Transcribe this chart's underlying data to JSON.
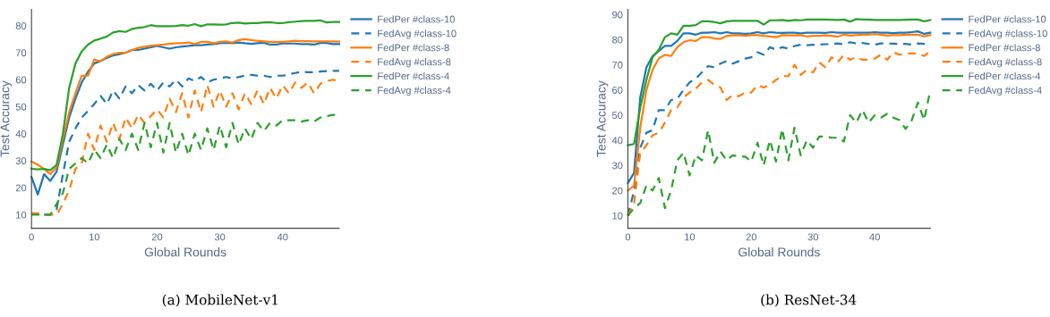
{
  "chart_data": [
    {
      "type": "line",
      "xlabel": "Global Rounds",
      "ylabel": "Test Accuracy",
      "annotations": [
        "(a) MobileNet-v1"
      ],
      "xlim": [
        0,
        49
      ],
      "xticks": [
        0,
        10,
        20,
        30,
        40
      ],
      "ylim": [
        5,
        86
      ],
      "yticks": [
        10,
        20,
        30,
        40,
        50,
        60,
        70,
        80
      ],
      "grid": false,
      "legend": "right",
      "x": [
        0,
        1,
        2,
        3,
        4,
        5,
        6,
        7,
        8,
        9,
        10,
        11,
        12,
        13,
        14,
        15,
        16,
        17,
        18,
        19,
        20,
        21,
        22,
        23,
        24,
        25,
        26,
        27,
        28,
        29,
        30,
        31,
        32,
        33,
        34,
        35,
        36,
        37,
        38,
        39,
        40,
        41,
        42,
        43,
        44,
        45,
        46,
        47,
        48,
        49
      ],
      "series": [
        {
          "name": "FedPer #class-10",
          "color": "#1f77b4",
          "line_style": "solid",
          "values": [
            24,
            17.5,
            25,
            22.5,
            26,
            36,
            46,
            53,
            59,
            63,
            66,
            67,
            68,
            69,
            69.5,
            70,
            71,
            71,
            71.5,
            72,
            72.5,
            72,
            71.5,
            72,
            72.3,
            72.5,
            72.8,
            72.8,
            73,
            73.2,
            73.5,
            73.7,
            73.5,
            73.8,
            73.5,
            73.3,
            73.5,
            73.7,
            73,
            73,
            73.4,
            73.4,
            73.4,
            73.2,
            73.2,
            73,
            73.6,
            73.6,
            73.2,
            73.2
          ]
        },
        {
          "name": "FedAvg #class-10",
          "color": "#1f77b4",
          "line_style": "dashed",
          "values": [
            null,
            null,
            10,
            10,
            12,
            25,
            37,
            42,
            46,
            48.5,
            51,
            54,
            51,
            56,
            53,
            57.5,
            55,
            58,
            56,
            58.5,
            56,
            59,
            57.5,
            60,
            57.5,
            60.5,
            59.5,
            61,
            59,
            60,
            60.5,
            61,
            60.5,
            61,
            61.5,
            61.8,
            61.5,
            61.5,
            61,
            61.5,
            61.5,
            62,
            62.5,
            63,
            62.8,
            62.8,
            63,
            63.2,
            63.3,
            63.3
          ]
        },
        {
          "name": "FedPer #class-8",
          "color": "#ff7f0e",
          "line_style": "solid",
          "values": [
            29.7,
            28.5,
            27,
            25,
            27.5,
            38,
            48,
            55,
            61.5,
            61.5,
            67.5,
            66.8,
            68.5,
            69.5,
            70,
            70,
            71,
            71.8,
            72.2,
            72.6,
            72.8,
            73,
            73.3,
            73.5,
            73.5,
            73.8,
            73.2,
            74,
            74,
            73.5,
            74,
            74.2,
            73.8,
            74.7,
            75,
            74.7,
            74.4,
            74.2,
            74,
            74,
            74,
            74.2,
            74.4,
            74.3,
            74.3,
            74.2,
            74.2,
            74.2,
            74.2,
            74.1
          ]
        },
        {
          "name": "FedAvg #class-8",
          "color": "#ff7f0e",
          "line_style": "dashed",
          "values": [
            10.5,
            10.5,
            10,
            10,
            10,
            14,
            19,
            27,
            29,
            40,
            34,
            43,
            37,
            44,
            38,
            46,
            42,
            47,
            44,
            46.5,
            49,
            46,
            53,
            48,
            55,
            46,
            56,
            48,
            58,
            50,
            56,
            50,
            55,
            49,
            55,
            51,
            56,
            51,
            57,
            53,
            58,
            55,
            59,
            57,
            59,
            55,
            58.5,
            59.5,
            60,
            59.3
          ]
        },
        {
          "name": "FedPer #class-4",
          "color": "#2ca02c",
          "line_style": "solid",
          "values": [
            27,
            26.8,
            27,
            26.5,
            28.5,
            40,
            57,
            66,
            70.5,
            73,
            74.5,
            75.2,
            76,
            77.5,
            78,
            77.7,
            78.8,
            79.2,
            79.5,
            80.2,
            79.8,
            79.8,
            79.8,
            79.9,
            80.2,
            80,
            80.6,
            79.8,
            80.5,
            80.5,
            80.4,
            80.5,
            81,
            81.1,
            80.8,
            81,
            81,
            81.2,
            81.3,
            81,
            81,
            81.3,
            81.5,
            81.7,
            81.8,
            81.8,
            82,
            81.2,
            81.4,
            81.4
          ]
        },
        {
          "name": "FedAvg #class-4",
          "color": "#2ca02c",
          "line_style": "dashed",
          "values": [
            10,
            10,
            10,
            10,
            14,
            18,
            27,
            29,
            31,
            29,
            34,
            31,
            36,
            31,
            38,
            34,
            40,
            34,
            44,
            35,
            44,
            33,
            44,
            33,
            40,
            32,
            40,
            34,
            42,
            34,
            43,
            35,
            44,
            36,
            42,
            38,
            44,
            41,
            44,
            43,
            45,
            45,
            45,
            44.5,
            45,
            44.5,
            46,
            46.5,
            47,
            47
          ]
        }
      ]
    },
    {
      "type": "line",
      "xlabel": "Global Rounds",
      "ylabel": "Test Accuracy",
      "annotations": [
        "(b) ResNet-34"
      ],
      "xlim": [
        0,
        49
      ],
      "xticks": [
        0,
        10,
        20,
        30,
        40
      ],
      "ylim": [
        5,
        92
      ],
      "yticks": [
        10,
        20,
        30,
        40,
        50,
        60,
        70,
        80,
        90
      ],
      "grid": false,
      "legend": "right",
      "x": [
        0,
        1,
        2,
        3,
        4,
        5,
        6,
        7,
        8,
        9,
        10,
        11,
        12,
        13,
        14,
        15,
        16,
        17,
        18,
        19,
        20,
        21,
        22,
        23,
        24,
        25,
        26,
        27,
        28,
        29,
        30,
        31,
        32,
        33,
        34,
        35,
        36,
        37,
        38,
        39,
        40,
        41,
        42,
        43,
        44,
        45,
        46,
        47,
        48,
        49
      ],
      "series": [
        {
          "name": "FedPer #class-10",
          "color": "#1f77b4",
          "line_style": "solid",
          "values": [
            23,
            27,
            57,
            69,
            73.5,
            75.5,
            77.5,
            77.5,
            79.5,
            82.5,
            82.5,
            82,
            82.8,
            82.8,
            83,
            82.5,
            83,
            82.5,
            82.5,
            82.3,
            82.5,
            83,
            82.5,
            83,
            82.8,
            82.7,
            82.8,
            82.8,
            82.5,
            82.8,
            82.8,
            82.8,
            82.7,
            83,
            82.8,
            82.8,
            82.8,
            82.8,
            82.8,
            82.8,
            83,
            82.8,
            82.8,
            82.6,
            82.8,
            82.8,
            83,
            83.3,
            82.3,
            82.8
          ]
        },
        {
          "name": "FedAvg #class-10",
          "color": "#1f77b4",
          "line_style": "dashed",
          "values": [
            10,
            20,
            37,
            43,
            44,
            52,
            52,
            56,
            56.5,
            60,
            63,
            64.5,
            67,
            69.5,
            69,
            70.5,
            71.5,
            70.5,
            71.5,
            72.5,
            73,
            75,
            74,
            77,
            76,
            77,
            76.5,
            77.5,
            78,
            77.8,
            78,
            78,
            78.2,
            78.2,
            78.5,
            78.2,
            79,
            78.5,
            78.7,
            78.3,
            78,
            78.5,
            78.5,
            78.4,
            78.3,
            78.3,
            78,
            78.5,
            78.3,
            78.3
          ]
        },
        {
          "name": "FedPer #class-8",
          "color": "#ff7f0e",
          "line_style": "solid",
          "values": [
            20,
            22,
            45,
            60,
            68,
            72.5,
            74,
            73.5,
            77,
            79,
            79.8,
            79.5,
            81,
            81,
            80.5,
            80.3,
            81.5,
            81.7,
            81.8,
            81.5,
            81.8,
            81.8,
            81.5,
            81.3,
            81,
            81.8,
            81.7,
            81.7,
            81.8,
            81.3,
            81.5,
            81.5,
            81.7,
            81.5,
            81.2,
            82,
            81.6,
            81.8,
            82,
            82,
            82.2,
            82,
            81.6,
            81.8,
            81.8,
            82,
            82,
            82,
            81.3,
            81.8
          ]
        },
        {
          "name": "FedAvg #class-8",
          "color": "#ff7f0e",
          "line_style": "dashed",
          "values": [
            10,
            15,
            35,
            38,
            42,
            43,
            47,
            52,
            53,
            57,
            59,
            60.5,
            63,
            64,
            62,
            61,
            56,
            58,
            57.5,
            59,
            59,
            62,
            61,
            62,
            64,
            65.5,
            65.5,
            70,
            66,
            68,
            67,
            71,
            69,
            73,
            71,
            74,
            72,
            73,
            72,
            72,
            72.5,
            74,
            72,
            75,
            74,
            74.5,
            74.5,
            74.5,
            73.5,
            75.5
          ]
        },
        {
          "name": "FedPer #class-4",
          "color": "#2ca02c",
          "line_style": "solid",
          "values": [
            38,
            38.5,
            53,
            64,
            73,
            76,
            81,
            82.5,
            82,
            85.5,
            85.5,
            85.8,
            87.3,
            87.3,
            87,
            86.5,
            87.3,
            87.5,
            87.5,
            87.5,
            87.5,
            87.5,
            86,
            87.7,
            87.7,
            87.8,
            87.5,
            87.8,
            87.7,
            88,
            88,
            88,
            88,
            87.9,
            87.8,
            88,
            87.2,
            88.2,
            88,
            88,
            87.8,
            87.8,
            87.8,
            87.8,
            87.8,
            87.9,
            88,
            88,
            87.3,
            87.8
          ]
        },
        {
          "name": "FedAvg #class-4",
          "color": "#2ca02c",
          "line_style": "dashed",
          "values": [
            10,
            13,
            15,
            22,
            20,
            25,
            13,
            20,
            32,
            35,
            26,
            34,
            32,
            44,
            31,
            35.5,
            32,
            34,
            33.5,
            33.5,
            31.5,
            39,
            30,
            40,
            31.5,
            44.5,
            32,
            45,
            34,
            40,
            37,
            41.5,
            41.5,
            41,
            41,
            39.5,
            50,
            47,
            52,
            47,
            50,
            49,
            50.5,
            49,
            48,
            44.5,
            48,
            55,
            48,
            60
          ]
        }
      ]
    }
  ]
}
